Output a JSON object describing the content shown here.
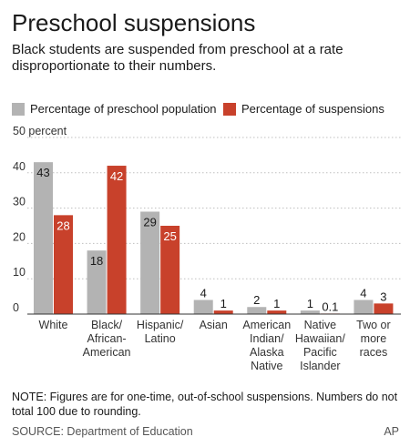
{
  "header": {
    "title": "Preschool suspensions",
    "subtitle": "Black students are suspended from preschool at a rate disproportionate to their numbers."
  },
  "chart_data": {
    "type": "bar",
    "categories": [
      [
        "White"
      ],
      [
        "Black/",
        "African-",
        "American"
      ],
      [
        "Hispanic/",
        "Latino"
      ],
      [
        "Asian"
      ],
      [
        "American",
        "Indian/",
        "Alaska",
        "Native"
      ],
      [
        "Native",
        "Hawaiian/",
        "Pacific",
        "Islander"
      ],
      [
        "Two or",
        "more",
        "races"
      ]
    ],
    "series": [
      {
        "name": "Percentage of preschool population",
        "color": "#b3b3b3",
        "values": [
          43,
          18,
          29,
          4,
          2,
          1,
          4
        ],
        "labels": [
          "43",
          "18",
          "29",
          "4",
          "2",
          "1",
          "4"
        ]
      },
      {
        "name": "Percentage of suspensions",
        "color": "#c8412b",
        "values": [
          28,
          42,
          25,
          1,
          1,
          0.1,
          3
        ],
        "labels": [
          "28",
          "42",
          "25",
          "1",
          "1",
          "0.1",
          "3"
        ]
      }
    ],
    "yticks": [
      0,
      10,
      20,
      30,
      40,
      50
    ],
    "ytick_labels": [
      "0",
      "10",
      "20",
      "30",
      "40",
      "50 percent"
    ],
    "ylim": [
      0,
      50
    ],
    "grid": true,
    "legend_position": "top"
  },
  "note": "NOTE: Figures are for one-time, out-of-school suspensions. Numbers do not total 100 due to rounding.",
  "source": "SOURCE: Department of Education",
  "credit": "AP"
}
